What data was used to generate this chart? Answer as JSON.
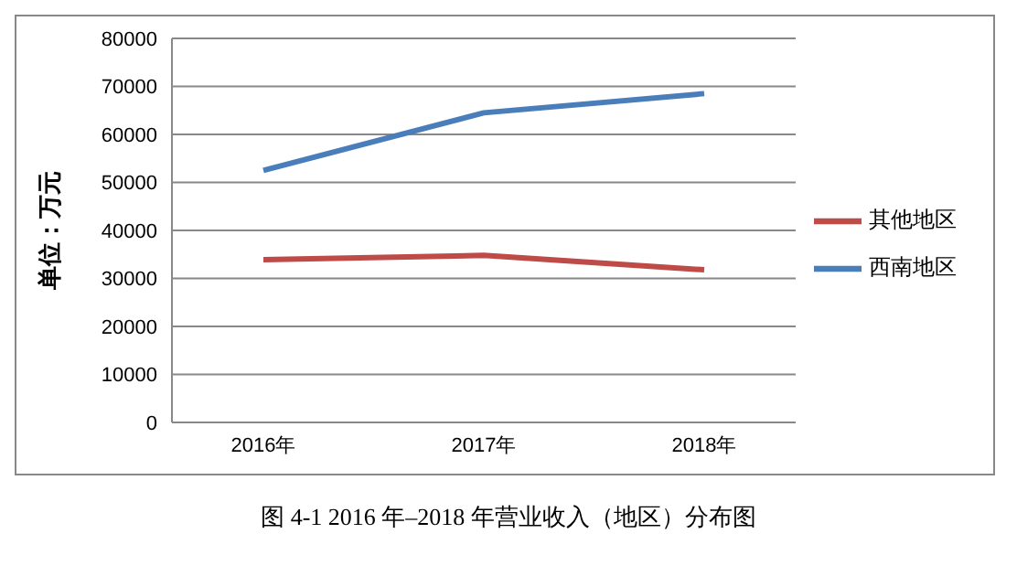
{
  "chart_data": {
    "type": "line",
    "ylabel": "单位：万元",
    "categories": [
      "2016年",
      "2017年",
      "2018年"
    ],
    "series": [
      {
        "name": "西南地区",
        "color": "#4a7ebb",
        "values": [
          52500,
          64500,
          68500
        ]
      },
      {
        "name": "其他地区",
        "color": "#be4b48",
        "values": [
          33900,
          34800,
          31800
        ]
      }
    ],
    "ylim": [
      0,
      80000
    ],
    "yticks": [
      0,
      10000,
      20000,
      30000,
      40000,
      50000,
      60000,
      70000,
      80000
    ],
    "grid": "y",
    "legend": "right",
    "marker": "none",
    "annotations": [
      "图 4-1 2016 年–2018 年营业收入（地区）分布图"
    ]
  }
}
